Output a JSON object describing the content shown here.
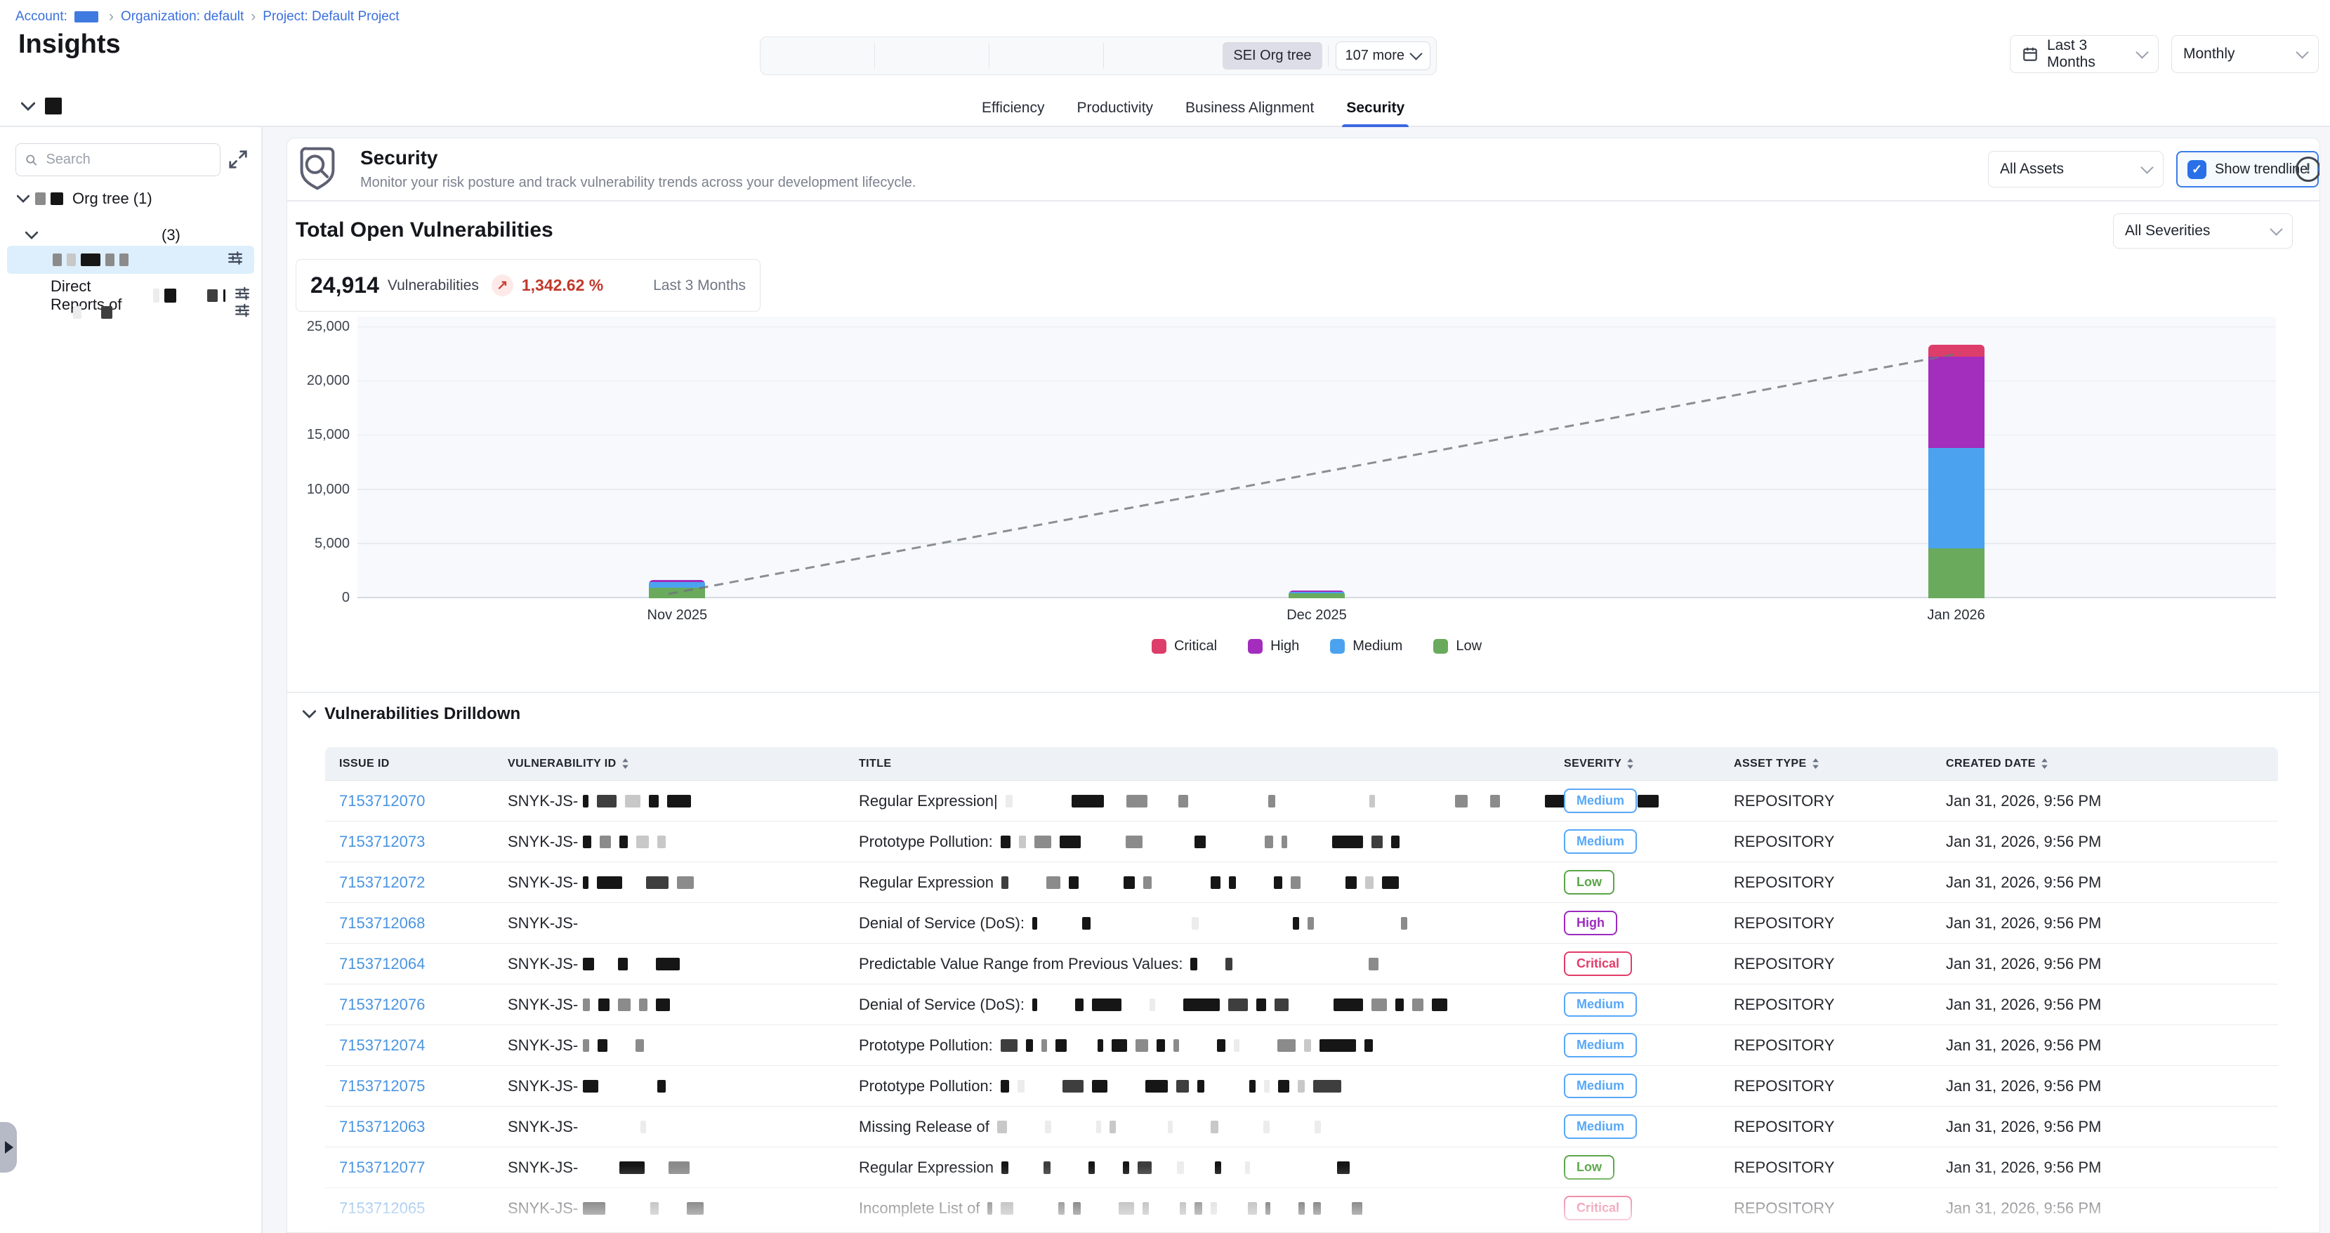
{
  "breadcrumb": {
    "account": "Account:",
    "separator": "›",
    "organization": "Organization: default",
    "project": "Project: Default Project"
  },
  "page_title": "Insights",
  "top_controls": {
    "org_tree_chip": "SEI Org tree",
    "more": "107 more",
    "date_range": "Last 3 Months",
    "granularity": "Monthly"
  },
  "tabs": [
    "Efficiency",
    "Productivity",
    "Business Alignment",
    "Security"
  ],
  "active_tab": "Security",
  "sidebar": {
    "search_placeholder": "Search",
    "org_tree_label": "Org tree (1)",
    "child_count": "(3)",
    "direct_reports_label": "Direct Reports of"
  },
  "security_header": {
    "title": "Security",
    "subtitle": "Monitor your risk posture and track vulnerability trends across your development lifecycle.",
    "assets_filter": "All Assets",
    "show_trendline": "Show trendline",
    "trendline_checked": true
  },
  "vuln_summary": {
    "section_title": "Total Open Vulnerabilities",
    "severity_filter": "All Severities",
    "count": "24,914",
    "count_unit": "Vulnerabilities",
    "delta": "1,342.62 %",
    "delta_direction": "up",
    "period": "Last 3 Months"
  },
  "chart_data": {
    "type": "bar",
    "stacked": true,
    "title": "Total Open Vulnerabilities",
    "categories": [
      "Nov 2025",
      "Dec 2025",
      "Jan 2026"
    ],
    "series": [
      {
        "name": "Low",
        "color": "#6aaa5c",
        "values": [
          950,
          480,
          4600
        ]
      },
      {
        "name": "Medium",
        "color": "#4ba3f0",
        "values": [
          560,
          130,
          9250
        ]
      },
      {
        "name": "High",
        "color": "#a32dbd",
        "values": [
          190,
          90,
          8400
        ]
      },
      {
        "name": "Critical",
        "color": "#dd3d6a",
        "values": [
          0,
          0,
          1100
        ]
      }
    ],
    "legend_order": [
      "Critical",
      "High",
      "Medium",
      "Low"
    ],
    "legend_position": "bottom",
    "grid": true,
    "ylim": [
      0,
      25000
    ],
    "ytick_step": 5000,
    "yticks": [
      "0",
      "5,000",
      "10,000",
      "15,000",
      "20,000",
      "25,000"
    ],
    "trendline": {
      "style": "dashed",
      "points": [
        {
          "category": "Nov 2025",
          "value": 400
        },
        {
          "category": "Jan 2026",
          "value": 22600
        }
      ]
    }
  },
  "drilldown": {
    "title": "Vulnerabilities Drilldown",
    "columns": [
      {
        "label": "ISSUE ID",
        "sortable": false
      },
      {
        "label": "VULNERABILITY ID",
        "sortable": true
      },
      {
        "label": "TITLE",
        "sortable": false
      },
      {
        "label": "SEVERITY",
        "sortable": true
      },
      {
        "label": "ASSET TYPE",
        "sortable": true
      },
      {
        "label": "CREATED DATE",
        "sortable": true
      }
    ],
    "severity_colors": {
      "Critical": "#e23c69",
      "High": "#9c2bbf",
      "Medium": "#58a8f7",
      "Low": "#5ba548"
    },
    "rows": [
      {
        "issue_id": "7153712070",
        "vuln_prefix": "SNYK-JS-",
        "vuln_redact": [
          [
            8,
            "k"
          ],
          [
            28,
            "d"
          ],
          [
            22,
            "l"
          ],
          [
            14,
            "k"
          ],
          [
            34,
            "k"
          ]
        ],
        "title": "Regular Expression|",
        "title_redact": [
          [
            10,
            "f"
          ],
          [
            60,
            "w"
          ],
          [
            46,
            "k"
          ],
          [
            8,
            "w"
          ],
          [
            30,
            "g"
          ],
          [
            20,
            "w"
          ],
          [
            14,
            "g"
          ],
          [
            90,
            "w"
          ],
          [
            10,
            "g"
          ],
          [
            110,
            "w"
          ],
          [
            8,
            "l"
          ],
          [
            90,
            "w"
          ],
          [
            18,
            "g"
          ],
          [
            8,
            "w"
          ],
          [
            14,
            "g"
          ],
          [
            40,
            "w"
          ],
          [
            30,
            "k"
          ],
          [
            10,
            "w"
          ],
          [
            36,
            "g"
          ],
          [
            8,
            "w"
          ],
          [
            30,
            "k"
          ]
        ],
        "severity": "Medium",
        "asset_type": "REPOSITORY",
        "created": "Jan 31, 2026, 9:56 PM"
      },
      {
        "issue_id": "7153712073",
        "vuln_prefix": "SNYK-JS-",
        "vuln_redact": [
          [
            12,
            "k"
          ],
          [
            16,
            "g"
          ],
          [
            12,
            "k"
          ],
          [
            18,
            "l"
          ],
          [
            12,
            "l"
          ]
        ],
        "title": "Prototype Pollution:",
        "title_redact": [
          [
            14,
            "k"
          ],
          [
            10,
            "l"
          ],
          [
            24,
            "g"
          ],
          [
            30,
            "k"
          ],
          [
            40,
            "w"
          ],
          [
            24,
            "g"
          ],
          [
            50,
            "w"
          ],
          [
            16,
            "k"
          ],
          [
            60,
            "w"
          ],
          [
            12,
            "g"
          ],
          [
            8,
            "g"
          ],
          [
            40,
            "w"
          ],
          [
            44,
            "k"
          ],
          [
            16,
            "d"
          ],
          [
            12,
            "k"
          ]
        ],
        "severity": "Medium",
        "asset_type": "REPOSITORY",
        "created": "Jan 31, 2026, 9:56 PM"
      },
      {
        "issue_id": "7153712072",
        "vuln_prefix": "SNYK-JS-",
        "vuln_redact": [
          [
            8,
            "k"
          ],
          [
            36,
            "k"
          ],
          [
            10,
            "w"
          ],
          [
            32,
            "d"
          ],
          [
            24,
            "g"
          ]
        ],
        "title": "Regular Expression",
        "title_redact": [
          [
            10,
            "d"
          ],
          [
            30,
            "w"
          ],
          [
            20,
            "g"
          ],
          [
            14,
            "k"
          ],
          [
            40,
            "w"
          ],
          [
            16,
            "k"
          ],
          [
            12,
            "g"
          ],
          [
            60,
            "w"
          ],
          [
            14,
            "k"
          ],
          [
            10,
            "k"
          ],
          [
            30,
            "w"
          ],
          [
            12,
            "k"
          ],
          [
            14,
            "g"
          ],
          [
            40,
            "w"
          ],
          [
            16,
            "k"
          ],
          [
            12,
            "l"
          ],
          [
            24,
            "k"
          ]
        ],
        "severity": "Low",
        "asset_type": "REPOSITORY",
        "created": "Jan 31, 2026, 9:56 PM"
      },
      {
        "issue_id": "7153712068",
        "vuln_prefix": "SNYK-JS-",
        "vuln_redact": [],
        "title": "Denial of Service (DoS):",
        "title_redact": [
          [
            7,
            "k"
          ],
          [
            40,
            "w"
          ],
          [
            12,
            "k"
          ],
          [
            120,
            "w"
          ],
          [
            10,
            "f"
          ],
          [
            110,
            "w"
          ],
          [
            9,
            "k"
          ],
          [
            9,
            "g"
          ],
          [
            100,
            "w"
          ],
          [
            9,
            "g"
          ]
        ],
        "severity": "High",
        "asset_type": "REPOSITORY",
        "created": "Jan 31, 2026, 9:56 PM"
      },
      {
        "issue_id": "7153712064",
        "vuln_prefix": "SNYK-JS-",
        "vuln_redact": [
          [
            16,
            "k"
          ],
          [
            10,
            "w"
          ],
          [
            14,
            "k"
          ],
          [
            16,
            "w"
          ],
          [
            34,
            "k"
          ]
        ],
        "title": "Predictable Value Range from Previous Values:",
        "title_redact": [
          [
            10,
            "k"
          ],
          [
            16,
            "w"
          ],
          [
            10,
            "d"
          ],
          [
            170,
            "w"
          ],
          [
            14,
            "g"
          ]
        ],
        "severity": "Critical",
        "asset_type": "REPOSITORY",
        "created": "Jan 31, 2026, 9:56 PM"
      },
      {
        "issue_id": "7153712076",
        "vuln_prefix": "SNYK-JS-",
        "vuln_redact": [
          [
            10,
            "g"
          ],
          [
            16,
            "k"
          ],
          [
            18,
            "g"
          ],
          [
            12,
            "g"
          ],
          [
            20,
            "k"
          ]
        ],
        "title": "Denial of Service (DoS):",
        "title_redact": [
          [
            7,
            "k"
          ],
          [
            30,
            "w"
          ],
          [
            12,
            "k"
          ],
          [
            42,
            "k"
          ],
          [
            16,
            "w"
          ],
          [
            8,
            "f"
          ],
          [
            16,
            "w"
          ],
          [
            52,
            "k"
          ],
          [
            28,
            "d"
          ],
          [
            14,
            "k"
          ],
          [
            20,
            "d"
          ],
          [
            40,
            "w"
          ],
          [
            42,
            "k"
          ],
          [
            22,
            "g"
          ],
          [
            12,
            "k"
          ],
          [
            16,
            "g"
          ],
          [
            22,
            "k"
          ]
        ],
        "severity": "Medium",
        "asset_type": "REPOSITORY",
        "created": "Jan 31, 2026, 9:56 PM"
      },
      {
        "issue_id": "7153712074",
        "vuln_prefix": "SNYK-JS-",
        "vuln_redact": [
          [
            9,
            "g"
          ],
          [
            14,
            "k"
          ],
          [
            16,
            "w"
          ],
          [
            12,
            "g"
          ]
        ],
        "title": "Prototype Pollution:",
        "title_redact": [
          [
            24,
            "d"
          ],
          [
            10,
            "k"
          ],
          [
            8,
            "g"
          ],
          [
            16,
            "k"
          ],
          [
            20,
            "w"
          ],
          [
            8,
            "k"
          ],
          [
            22,
            "k"
          ],
          [
            18,
            "g"
          ],
          [
            12,
            "k"
          ],
          [
            8,
            "g"
          ],
          [
            30,
            "w"
          ],
          [
            12,
            "k"
          ],
          [
            8,
            "f"
          ],
          [
            30,
            "w"
          ],
          [
            26,
            "g"
          ],
          [
            10,
            "l"
          ],
          [
            52,
            "k"
          ],
          [
            12,
            "k"
          ]
        ],
        "severity": "Medium",
        "asset_type": "REPOSITORY",
        "created": "Jan 31, 2026, 9:56 PM"
      },
      {
        "issue_id": "7153712075",
        "vuln_prefix": "SNYK-JS-",
        "vuln_redact": [
          [
            22,
            "k"
          ],
          [
            60,
            "w"
          ],
          [
            12,
            "k"
          ]
        ],
        "title": "Prototype Pollution:",
        "title_redact": [
          [
            12,
            "k"
          ],
          [
            10,
            "f"
          ],
          [
            30,
            "w"
          ],
          [
            30,
            "d"
          ],
          [
            22,
            "k"
          ],
          [
            30,
            "w"
          ],
          [
            32,
            "k"
          ],
          [
            18,
            "d"
          ],
          [
            10,
            "k"
          ],
          [
            40,
            "w"
          ],
          [
            9,
            "k"
          ],
          [
            8,
            "f"
          ],
          [
            16,
            "k"
          ],
          [
            10,
            "l"
          ],
          [
            40,
            "d"
          ]
        ],
        "severity": "Medium",
        "asset_type": "REPOSITORY",
        "created": "Jan 31, 2026, 9:56 PM"
      },
      {
        "issue_id": "7153712063",
        "vuln_prefix": "SNYK-JS-",
        "vuln_redact": [
          [
            70,
            "w"
          ],
          [
            8,
            "f"
          ]
        ],
        "title": "Missing Release of",
        "title_redact": [
          [
            14,
            "l"
          ],
          [
            30,
            "w"
          ],
          [
            9,
            "f"
          ],
          [
            40,
            "w"
          ],
          [
            7,
            "f"
          ],
          [
            9,
            "l"
          ],
          [
            50,
            "w"
          ],
          [
            7,
            "f"
          ],
          [
            30,
            "w"
          ],
          [
            11,
            "l"
          ],
          [
            40,
            "w"
          ],
          [
            9,
            "f"
          ],
          [
            40,
            "w"
          ],
          [
            9,
            "f"
          ]
        ],
        "severity": "Medium",
        "asset_type": "REPOSITORY",
        "created": "Jan 31, 2026, 9:56 PM"
      },
      {
        "issue_id": "7153712077",
        "vuln_prefix": "SNYK-JS-",
        "vuln_redact": [
          [
            40,
            "w"
          ],
          [
            36,
            "k"
          ],
          [
            10,
            "w"
          ],
          [
            30,
            "g"
          ]
        ],
        "title": "Regular Expression",
        "title_redact": [
          [
            10,
            "k"
          ],
          [
            26,
            "w"
          ],
          [
            10,
            "d"
          ],
          [
            30,
            "w"
          ],
          [
            9,
            "k"
          ],
          [
            16,
            "w"
          ],
          [
            9,
            "k"
          ],
          [
            20,
            "d"
          ],
          [
            12,
            "w"
          ],
          [
            10,
            "f"
          ],
          [
            20,
            "w"
          ],
          [
            9,
            "k"
          ],
          [
            10,
            "w"
          ],
          [
            7,
            "f"
          ],
          [
            100,
            "w"
          ],
          [
            18,
            "k"
          ]
        ],
        "severity": "Low",
        "asset_type": "REPOSITORY",
        "created": "Jan 31, 2026, 9:56 PM"
      },
      {
        "issue_id": "7153712065",
        "vuln_prefix": "SNYK-JS-",
        "vuln_redact": [
          [
            32,
            "k"
          ],
          [
            40,
            "w"
          ],
          [
            12,
            "g"
          ],
          [
            16,
            "w"
          ],
          [
            24,
            "k"
          ]
        ],
        "title": "Incomplete List of",
        "title_redact": [
          [
            7,
            "d"
          ],
          [
            18,
            "g"
          ],
          [
            40,
            "w"
          ],
          [
            9,
            "d"
          ],
          [
            11,
            "k"
          ],
          [
            30,
            "w"
          ],
          [
            22,
            "g"
          ],
          [
            9,
            "g"
          ],
          [
            20,
            "w"
          ],
          [
            9,
            "g"
          ],
          [
            11,
            "d"
          ],
          [
            9,
            "l"
          ],
          [
            20,
            "w"
          ],
          [
            13,
            "g"
          ],
          [
            7,
            "k"
          ],
          [
            16,
            "w"
          ],
          [
            9,
            "k"
          ],
          [
            11,
            "k"
          ],
          [
            20,
            "w"
          ],
          [
            15,
            "k"
          ]
        ],
        "severity": "Critical",
        "asset_type": "REPOSITORY",
        "created": "Jan 31, 2026, 9:56 PM"
      }
    ]
  },
  "redactions": {
    "breadcrumb_account": [
      [
        34,
        "b"
      ]
    ],
    "topbar_box": [
      [
        24,
        "k"
      ]
    ],
    "org_row": [
      [
        15,
        "g"
      ],
      [
        18,
        "k"
      ]
    ],
    "selected_row": [
      [
        13,
        "g"
      ],
      [
        13,
        "l"
      ],
      [
        28,
        "k"
      ],
      [
        13,
        "g"
      ],
      [
        13,
        "g"
      ]
    ],
    "direct_suffix": [
      [
        9,
        "f"
      ],
      [
        17,
        "k"
      ]
    ],
    "direct_extra": [
      [
        15,
        "d"
      ],
      [
        3,
        "k"
      ]
    ],
    "leaf_row": [
      [
        12,
        "f"
      ],
      [
        14,
        "w"
      ],
      [
        16,
        "d"
      ]
    ]
  }
}
